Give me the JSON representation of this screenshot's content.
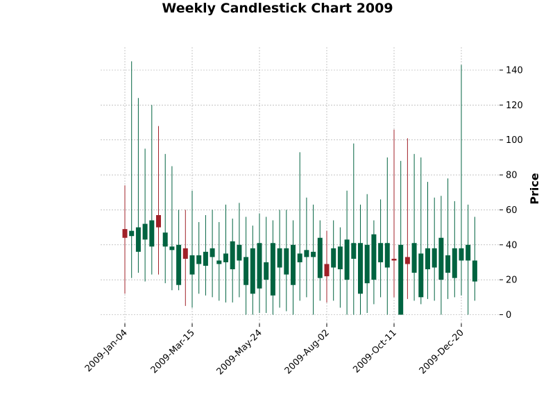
{
  "chart_data": {
    "type": "candlestick",
    "title": "Weekly Candlestick Chart 2009",
    "xlabel": "",
    "ylabel": "Price",
    "ylim": [
      -6,
      153
    ],
    "y_ticks": [
      0,
      20,
      40,
      60,
      80,
      100,
      120,
      140
    ],
    "y_axis_side": "right",
    "grid": true,
    "colors": {
      "up": "#006340",
      "down": "#a02128",
      "grid": "#a0a0a0"
    },
    "x_tick_labels": [
      {
        "index": 0,
        "label": "2009-Jan-04"
      },
      {
        "index": 10,
        "label": "2009-Mar-15"
      },
      {
        "index": 20,
        "label": "2009-May-24"
      },
      {
        "index": 30,
        "label": "2009-Aug-02"
      },
      {
        "index": 40,
        "label": "2009-Oct-11"
      },
      {
        "index": 50,
        "label": "2009-Dec-20"
      }
    ],
    "candles": [
      {
        "date": "2009-Jan-04",
        "open": 49,
        "high": 74,
        "low": 12,
        "close": 44
      },
      {
        "date": "2009-Jan-11",
        "open": 45,
        "high": 145,
        "low": 21,
        "close": 48
      },
      {
        "date": "2009-Jan-18",
        "open": 36,
        "high": 124,
        "low": 24,
        "close": 50
      },
      {
        "date": "2009-Jan-25",
        "open": 43,
        "high": 95,
        "low": 19,
        "close": 52
      },
      {
        "date": "2009-Feb-01",
        "open": 39,
        "high": 120,
        "low": 23,
        "close": 54
      },
      {
        "date": "2009-Feb-08",
        "open": 57,
        "high": 108,
        "low": 23,
        "close": 50
      },
      {
        "date": "2009-Feb-15",
        "open": 39,
        "high": 92,
        "low": 18,
        "close": 47
      },
      {
        "date": "2009-Feb-22",
        "open": 37,
        "high": 85,
        "low": 14,
        "close": 39
      },
      {
        "date": "2009-Mar-01",
        "open": 17,
        "high": 60,
        "low": 14,
        "close": 40
      },
      {
        "date": "2009-Mar-08",
        "open": 38,
        "high": 60,
        "low": 5,
        "close": 32
      },
      {
        "date": "2009-Mar-15",
        "open": 23,
        "high": 71,
        "low": 4,
        "close": 34
      },
      {
        "date": "2009-Mar-22",
        "open": 29,
        "high": 53,
        "low": 12,
        "close": 34
      },
      {
        "date": "2009-Mar-29",
        "open": 28,
        "high": 57,
        "low": 11,
        "close": 36
      },
      {
        "date": "2009-Apr-05",
        "open": 33,
        "high": 60,
        "low": 10,
        "close": 38
      },
      {
        "date": "2009-Apr-12",
        "open": 29,
        "high": 53,
        "low": 8,
        "close": 31
      },
      {
        "date": "2009-Apr-19",
        "open": 30,
        "high": 63,
        "low": 7,
        "close": 35
      },
      {
        "date": "2009-Apr-26",
        "open": 26,
        "high": 55,
        "low": 7,
        "close": 42
      },
      {
        "date": "2009-May-03",
        "open": 31,
        "high": 64,
        "low": 10,
        "close": 40
      },
      {
        "date": "2009-May-10",
        "open": 17,
        "high": 56,
        "low": 0,
        "close": 33
      },
      {
        "date": "2009-May-17",
        "open": 12,
        "high": 51,
        "low": 0,
        "close": 38
      },
      {
        "date": "2009-May-24",
        "open": 15,
        "high": 58,
        "low": 1,
        "close": 41
      },
      {
        "date": "2009-May-31",
        "open": 20,
        "high": 56,
        "low": 1,
        "close": 30
      },
      {
        "date": "2009-Jun-07",
        "open": 11,
        "high": 54,
        "low": 0,
        "close": 41
      },
      {
        "date": "2009-Jun-14",
        "open": 27,
        "high": 60,
        "low": 4,
        "close": 38
      },
      {
        "date": "2009-Jun-21",
        "open": 23,
        "high": 60,
        "low": 2,
        "close": 38
      },
      {
        "date": "2009-Jun-28",
        "open": 17,
        "high": 54,
        "low": 0,
        "close": 40
      },
      {
        "date": "2009-Jul-05",
        "open": 30,
        "high": 93,
        "low": 8,
        "close": 35
      },
      {
        "date": "2009-Jul-12",
        "open": 33,
        "high": 67,
        "low": 10,
        "close": 37
      },
      {
        "date": "2009-Jul-19",
        "open": 33,
        "high": 63,
        "low": 0,
        "close": 36
      },
      {
        "date": "2009-Jul-26",
        "open": 21,
        "high": 54,
        "low": 8,
        "close": 44
      },
      {
        "date": "2009-Aug-02",
        "open": 29,
        "high": 48,
        "low": 7,
        "close": 22
      },
      {
        "date": "2009-Aug-09",
        "open": 27,
        "high": 54,
        "low": 8,
        "close": 38
      },
      {
        "date": "2009-Aug-16",
        "open": 26,
        "high": 50,
        "low": 4,
        "close": 39
      },
      {
        "date": "2009-Aug-23",
        "open": 20,
        "high": 71,
        "low": 0,
        "close": 43
      },
      {
        "date": "2009-Aug-30",
        "open": 32,
        "high": 98,
        "low": 0,
        "close": 41
      },
      {
        "date": "2009-Sep-06",
        "open": 12,
        "high": 63,
        "low": 0,
        "close": 41
      },
      {
        "date": "2009-Sep-13",
        "open": 18,
        "high": 69,
        "low": 1,
        "close": 40
      },
      {
        "date": "2009-Sep-20",
        "open": 20,
        "high": 54,
        "low": 6,
        "close": 46
      },
      {
        "date": "2009-Sep-27",
        "open": 30,
        "high": 66,
        "low": 10,
        "close": 41
      },
      {
        "date": "2009-Oct-04",
        "open": 27,
        "high": 90,
        "low": 0,
        "close": 41
      },
      {
        "date": "2009-Oct-11",
        "open": 32,
        "high": 106,
        "low": 10,
        "close": 31
      },
      {
        "date": "2009-Oct-18",
        "open": 0,
        "high": 88,
        "low": 0,
        "close": 40
      },
      {
        "date": "2009-Oct-25",
        "open": 33,
        "high": 101,
        "low": 9,
        "close": 29
      },
      {
        "date": "2009-Nov-01",
        "open": 24,
        "high": 92,
        "low": 8,
        "close": 41
      },
      {
        "date": "2009-Nov-08",
        "open": 10,
        "high": 90,
        "low": 6,
        "close": 35
      },
      {
        "date": "2009-Nov-15",
        "open": 26,
        "high": 76,
        "low": 9,
        "close": 38
      },
      {
        "date": "2009-Nov-22",
        "open": 27,
        "high": 67,
        "low": 8,
        "close": 38
      },
      {
        "date": "2009-Nov-29",
        "open": 20,
        "high": 68,
        "low": 0,
        "close": 44
      },
      {
        "date": "2009-Dec-06",
        "open": 24,
        "high": 78,
        "low": 9,
        "close": 34
      },
      {
        "date": "2009-Dec-13",
        "open": 21,
        "high": 65,
        "low": 10,
        "close": 38
      },
      {
        "date": "2009-Dec-20",
        "open": 31,
        "high": 143,
        "low": 11,
        "close": 38
      },
      {
        "date": "2009-Dec-27",
        "open": 31,
        "high": 63,
        "low": 0,
        "close": 40
      },
      {
        "date": "2010-Jan-03",
        "open": 19,
        "high": 56,
        "low": 8,
        "close": 31
      }
    ]
  }
}
